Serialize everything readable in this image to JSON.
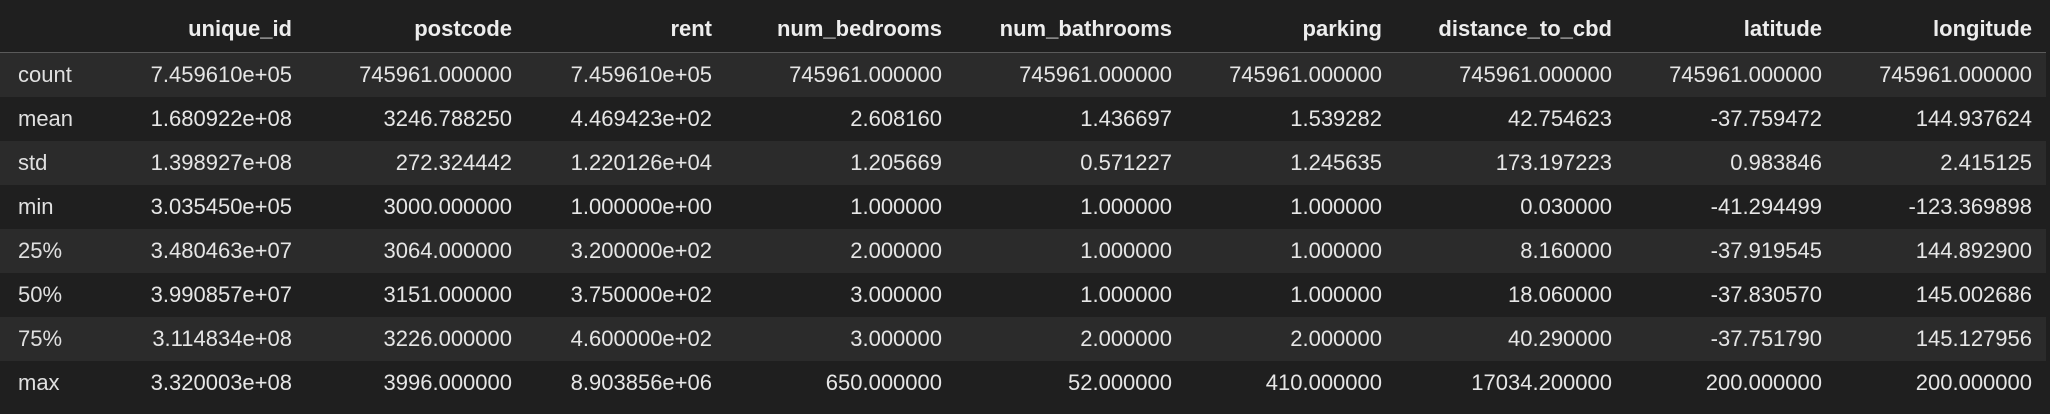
{
  "columns": [
    "",
    "unique_id",
    "postcode",
    "rent",
    "num_bedrooms",
    "num_bathrooms",
    "parking",
    "distance_to_cbd",
    "latitude",
    "longitude"
  ],
  "rows": [
    {
      "label": "count",
      "values": [
        "7.459610e+05",
        "745961.000000",
        "7.459610e+05",
        "745961.000000",
        "745961.000000",
        "745961.000000",
        "745961.000000",
        "745961.000000",
        "745961.000000"
      ]
    },
    {
      "label": "mean",
      "values": [
        "1.680922e+08",
        "3246.788250",
        "4.469423e+02",
        "2.608160",
        "1.436697",
        "1.539282",
        "42.754623",
        "-37.759472",
        "144.937624"
      ]
    },
    {
      "label": "std",
      "values": [
        "1.398927e+08",
        "272.324442",
        "1.220126e+04",
        "1.205669",
        "0.571227",
        "1.245635",
        "173.197223",
        "0.983846",
        "2.415125"
      ]
    },
    {
      "label": "min",
      "values": [
        "3.035450e+05",
        "3000.000000",
        "1.000000e+00",
        "1.000000",
        "1.000000",
        "1.000000",
        "0.030000",
        "-41.294499",
        "-123.369898"
      ]
    },
    {
      "label": "25%",
      "values": [
        "3.480463e+07",
        "3064.000000",
        "3.200000e+02",
        "2.000000",
        "1.000000",
        "1.000000",
        "8.160000",
        "-37.919545",
        "144.892900"
      ]
    },
    {
      "label": "50%",
      "values": [
        "3.990857e+07",
        "3151.000000",
        "3.750000e+02",
        "3.000000",
        "1.000000",
        "1.000000",
        "18.060000",
        "-37.830570",
        "145.002686"
      ]
    },
    {
      "label": "75%",
      "values": [
        "3.114834e+08",
        "3226.000000",
        "4.600000e+02",
        "3.000000",
        "2.000000",
        "2.000000",
        "40.290000",
        "-37.751790",
        "145.127956"
      ]
    },
    {
      "label": "max",
      "values": [
        "3.320003e+08",
        "3996.000000",
        "8.903856e+06",
        "650.000000",
        "52.000000",
        "410.000000",
        "17034.200000",
        "200.000000",
        "200.000000"
      ]
    }
  ]
}
